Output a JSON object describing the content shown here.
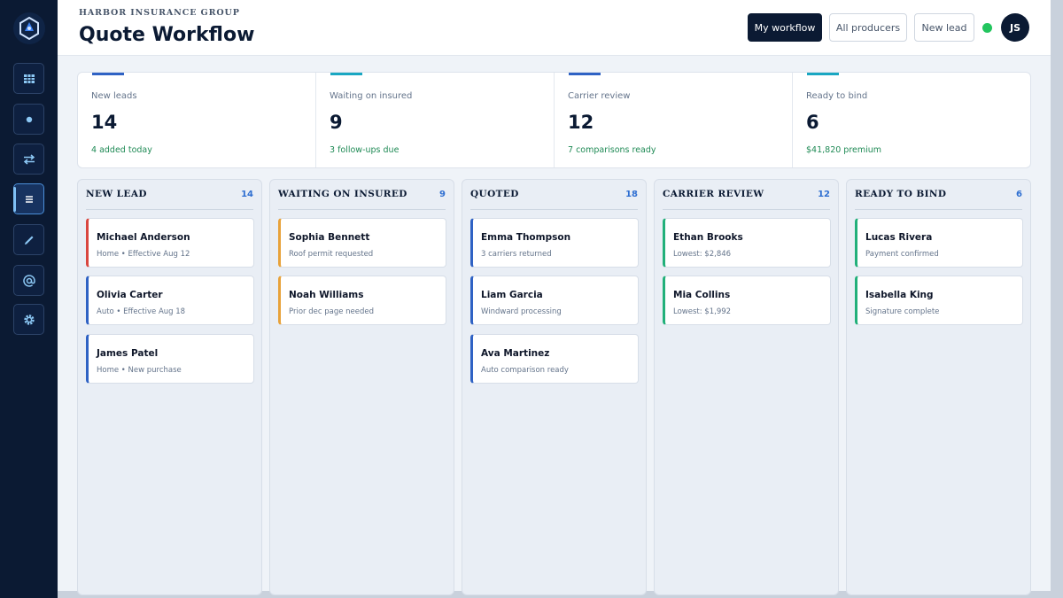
{
  "header": {
    "company": "HARBOR INSURANCE GROUP",
    "title": "Quote Workflow",
    "buttons": [
      "My workflow",
      "All producers",
      "New lead"
    ],
    "avatar_initials": "JS"
  },
  "sidebar": {
    "icons": [
      "logo-icon",
      "table-icon",
      "dot-icon",
      "swap-icon",
      "list-icon",
      "pencil-icon",
      "at-icon",
      "gear-icon"
    ],
    "active": "list-icon"
  },
  "stats": [
    {
      "label": "New leads",
      "value": "14",
      "sub": "4 added today",
      "accent": "#2f62c4"
    },
    {
      "label": "Waiting on insured",
      "value": "9",
      "sub": "3 follow-ups due",
      "accent": "#19a7c2"
    },
    {
      "label": "Carrier review",
      "value": "12",
      "sub": "7 comparisons ready",
      "accent": "#2f62c4"
    },
    {
      "label": "Ready to bind",
      "value": "6",
      "sub": "$41,820 premium",
      "accent": "#19a7c2"
    }
  ],
  "columns": [
    {
      "title": "NEW LEAD",
      "count": "14",
      "cards": [
        {
          "name": "Michael Anderson",
          "sub": "Home • Effective Aug 12",
          "color": "#d9463f"
        },
        {
          "name": "Olivia Carter",
          "sub": "Auto • Effective Aug 18",
          "color": "#2f62c4"
        },
        {
          "name": "James Patel",
          "sub": "Home • New purchase",
          "color": "#2f62c4"
        }
      ]
    },
    {
      "title": "WAITING ON INSURED",
      "count": "9",
      "cards": [
        {
          "name": "Sophia Bennett",
          "sub": "Roof permit requested",
          "color": "#e8a23a"
        },
        {
          "name": "Noah Williams",
          "sub": "Prior dec page needed",
          "color": "#e8a23a"
        }
      ]
    },
    {
      "title": "QUOTED",
      "count": "18",
      "cards": [
        {
          "name": "Emma Thompson",
          "sub": "3 carriers returned",
          "color": "#2f62c4"
        },
        {
          "name": "Liam Garcia",
          "sub": "Windward processing",
          "color": "#2f62c4"
        },
        {
          "name": "Ava Martinez",
          "sub": "Auto comparison ready",
          "color": "#2f62c4"
        }
      ]
    },
    {
      "title": "CARRIER REVIEW",
      "count": "12",
      "cards": [
        {
          "name": "Ethan Brooks",
          "sub": "Lowest: $2,846",
          "color": "#22b07a"
        },
        {
          "name": "Mia Collins",
          "sub": "Lowest: $1,992",
          "color": "#22b07a"
        }
      ]
    },
    {
      "title": "READY TO BIND",
      "count": "6",
      "cards": [
        {
          "name": "Lucas Rivera",
          "sub": "Payment confirmed",
          "color": "#22b07a"
        },
        {
          "name": "Isabella King",
          "sub": "Signature complete",
          "color": "#22b07a"
        }
      ]
    }
  ]
}
